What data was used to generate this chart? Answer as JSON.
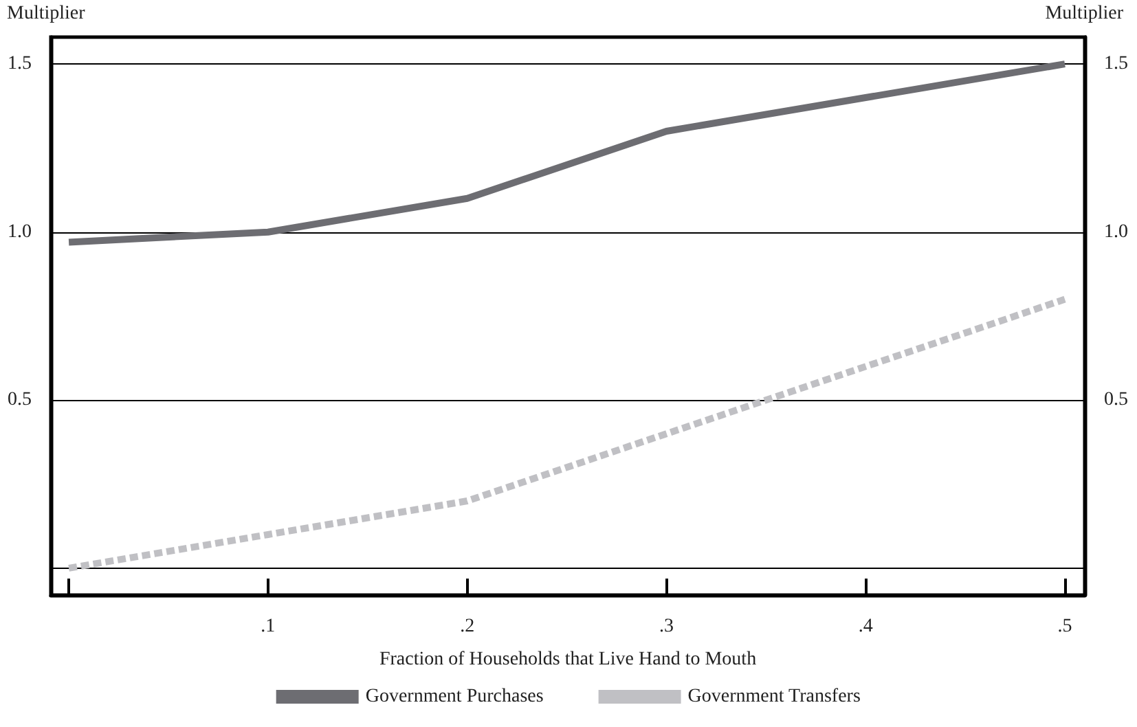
{
  "chart_data": {
    "type": "line",
    "xlabel": "Fraction of Households that Live Hand to Mouth",
    "ylabel": "Multiplier",
    "y2label": "Multiplier",
    "x": [
      0,
      0.1,
      0.2,
      0.3,
      0.4,
      0.5
    ],
    "series": [
      {
        "name": "Government Purchases",
        "color": "#6d6d72",
        "line_style": "solid",
        "values": [
          0.97,
          1.0,
          1.1,
          1.3,
          1.4,
          1.5
        ]
      },
      {
        "name": "Government Transfers",
        "color": "#c0c0c4",
        "line_style": "dashed",
        "values": [
          0.0,
          0.1,
          0.2,
          0.4,
          0.6,
          0.8
        ]
      }
    ],
    "xlim": [
      -0.009,
      0.51
    ],
    "xticks": [
      {
        "value": 0,
        "label": null
      },
      {
        "value": 0.1,
        "label": ".1"
      },
      {
        "value": 0.2,
        "label": ".2"
      },
      {
        "value": 0.3,
        "label": ".3"
      },
      {
        "value": 0.4,
        "label": ".4"
      },
      {
        "value": 0.5,
        "label": ".5"
      }
    ],
    "ylim": [
      -0.08,
      1.58
    ],
    "yticks": [
      {
        "value": 0,
        "label": null
      },
      {
        "value": 0.5,
        "label": "0.5"
      },
      {
        "value": 1.0,
        "label": "1.0"
      },
      {
        "value": 1.5,
        "label": "1.5"
      }
    ],
    "y2lim": [
      -0.08,
      1.58
    ],
    "y2ticks": [
      {
        "value": 0,
        "label": null
      },
      {
        "value": 0.5,
        "label": "0.5"
      },
      {
        "value": 1.0,
        "label": "1.0"
      },
      {
        "value": 1.5,
        "label": "1.5"
      }
    ],
    "grid": "y",
    "legend": "bottom",
    "marker": "none"
  }
}
